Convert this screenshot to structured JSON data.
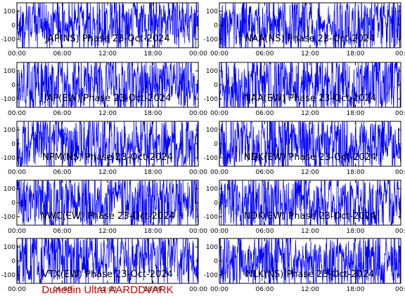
{
  "colors": {
    "trace": "#0000ff",
    "axis": "#000000",
    "footer": "#cc0000"
  },
  "footer": {
    "label": "Dunedin Ultra AARDDVARK"
  },
  "chart_data": [
    {
      "type": "line",
      "title": "JAP(NS) Phase  23-Oct-2024",
      "x_ticks": [
        "00:00",
        "06:00",
        "12:00",
        "18:00",
        "00:00"
      ],
      "y_ticks": [
        "100",
        "0",
        "-100"
      ],
      "ylim": [
        -160,
        160
      ],
      "seed": 11
    },
    {
      "type": "line",
      "title": "NAA(NS) Phase  23-Oct-2024",
      "x_ticks": [
        "00:00",
        "06:00",
        "12:00",
        "18:00",
        "00:00"
      ],
      "y_ticks": [
        "100",
        "0",
        "-100"
      ],
      "ylim": [
        -160,
        160
      ],
      "seed": 23
    },
    {
      "type": "line",
      "title": "JAP(EW) Phase  23-Oct-2024",
      "x_ticks": [
        "00:00",
        "06:00",
        "12:00",
        "18:00",
        "00:00"
      ],
      "y_ticks": [
        "100",
        "0",
        "-100"
      ],
      "ylim": [
        -160,
        160
      ],
      "seed": 37
    },
    {
      "type": "line",
      "title": "NAA(EW) Phase  23-Oct-2024",
      "x_ticks": [
        "00:00",
        "06:00",
        "12:00",
        "18:00",
        "00:00"
      ],
      "y_ticks": [
        "100",
        "0",
        "-100"
      ],
      "ylim": [
        -160,
        160
      ],
      "seed": 41
    },
    {
      "type": "line",
      "title": "NPM(NS) Phase  23-Oct-2024",
      "x_ticks": [
        "00:00",
        "06:00",
        "12:00",
        "18:00",
        "00:00"
      ],
      "y_ticks": [
        "100",
        "0",
        "-100"
      ],
      "ylim": [
        -160,
        160
      ],
      "seed": 53
    },
    {
      "type": "line",
      "title": "NDK(EW) Phase  23-Oct-2024",
      "x_ticks": [
        "00:00",
        "06:00",
        "12:00",
        "18:00",
        "00:00"
      ],
      "y_ticks": [
        "100",
        "0",
        "-100"
      ],
      "ylim": [
        -160,
        160
      ],
      "seed": 67
    },
    {
      "type": "line",
      "title": "NWC(EW) Phase  23-Oct-2024",
      "x_ticks": [
        "00:00",
        "06:00",
        "12:00",
        "18:00",
        "00:00"
      ],
      "y_ticks": [
        "100",
        "0",
        "-100"
      ],
      "ylim": [
        -160,
        160
      ],
      "seed": 71
    },
    {
      "type": "line",
      "title": "NDK(EW) Phase  23-Oct-2024",
      "x_ticks": [
        "00:00",
        "06:00",
        "12:00",
        "18:00",
        "00:00"
      ],
      "y_ticks": [
        "100",
        "0",
        "-100"
      ],
      "ylim": [
        -160,
        160
      ],
      "seed": 83
    },
    {
      "type": "line",
      "title": "VTX(EW) Phase  23-Oct-2024",
      "x_ticks": [
        "00:00",
        "06:00",
        "12:00",
        "18:00",
        "00:00"
      ],
      "y_ticks": [
        "100",
        "0",
        "-100"
      ],
      "ylim": [
        -160,
        160
      ],
      "seed": 97
    },
    {
      "type": "line",
      "title": "NLK(NS) Phase  23-Oct-2024",
      "x_ticks": [
        "00:00",
        "06:00",
        "12:00",
        "18:00",
        "00:00"
      ],
      "y_ticks": [
        "100",
        "0",
        "-100"
      ],
      "ylim": [
        -160,
        160
      ],
      "seed": 101
    }
  ]
}
